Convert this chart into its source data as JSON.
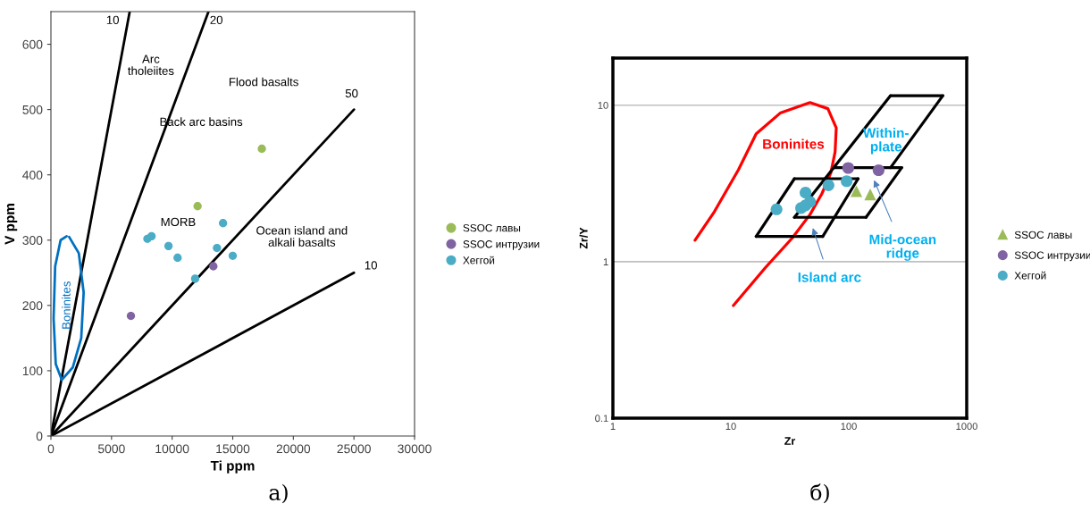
{
  "chart_data": [
    {
      "type": "scatter",
      "xlabel": "Ti ppm",
      "ylabel": "V ppm",
      "xlim": [
        0,
        30000
      ],
      "ylim": [
        0,
        650
      ],
      "xticks": [
        0,
        5000,
        10000,
        15000,
        20000,
        25000,
        30000
      ],
      "yticks": [
        0,
        100,
        200,
        300,
        400,
        500,
        600
      ],
      "grid": false,
      "legend": "right",
      "series": [
        {
          "type": "line",
          "marker": "none",
          "color": "#000000",
          "x": [
            0,
            6500
          ],
          "values": [
            0,
            650
          ]
        },
        {
          "type": "line",
          "marker": "none",
          "color": "#000000",
          "x": [
            0,
            13000
          ],
          "values": [
            0,
            650
          ]
        },
        {
          "type": "line",
          "marker": "none",
          "color": "#000000",
          "x": [
            0,
            25000
          ],
          "values": [
            0,
            500
          ]
        },
        {
          "type": "line",
          "marker": "none",
          "color": "#000000",
          "x": [
            0,
            25000
          ],
          "values": [
            0,
            250
          ]
        },
        {
          "type": "line",
          "marker": "none",
          "color": "#0070c0",
          "x": [
            1500,
            2300,
            2700,
            2500,
            1800,
            900,
            400,
            220,
            350,
            800,
            1300
          ],
          "values": [
            305,
            280,
            220,
            150,
            105,
            86,
            110,
            180,
            260,
            300,
            306
          ]
        },
        {
          "name": "SSOC лавы",
          "marker": "circle",
          "color": "#9bbb59",
          "x": [
            17400,
            12100
          ],
          "values": [
            440,
            352
          ]
        },
        {
          "name": "SSOC интрузии",
          "marker": "circle",
          "color": "#8064a2",
          "x": [
            6600,
            13400
          ],
          "values": [
            184,
            260
          ]
        },
        {
          "name": "Хеггой",
          "marker": "circle",
          "color": "#4bacc6",
          "x": [
            7960,
            8300,
            9700,
            10450,
            11900,
            14200,
            13700,
            15000
          ],
          "values": [
            302,
            306,
            291,
            273,
            241,
            326,
            288,
            276
          ]
        }
      ],
      "annotations": [
        "10",
        "20",
        "50",
        "10",
        "Arc\ntholeiites",
        "Flood basalts",
        "Back arc basins",
        "MORB",
        "Ocean island and\nalkali basalts",
        "Boninites",
        "а)"
      ]
    },
    {
      "type": "scatter",
      "xlabel": "Zr",
      "ylabel": "Zr/Y",
      "log": "xy",
      "xlim": [
        1,
        1000
      ],
      "ylim": [
        0.1,
        20
      ],
      "xticks": [
        1,
        10,
        100,
        1000
      ],
      "yticks": [
        0.1,
        1,
        10
      ],
      "grid": "y",
      "legend": "right",
      "series": [
        {
          "type": "line",
          "marker": "none",
          "color": "#ff0000",
          "x": [
            4.97,
            7.26,
            11.6,
            16.4,
            26.2,
            46.9,
            66.5,
            78.3,
            76.6,
            70.5,
            59.2,
            46.9,
            33,
            19.5,
            10.5
          ],
          "values": [
            1.37,
            2.09,
            3.87,
            6.56,
            8.9,
            10.4,
            9.5,
            7.16,
            5.04,
            3.7,
            2.72,
            2.0,
            1.41,
            0.91,
            0.524
          ]
        },
        {
          "type": "line",
          "marker": "none",
          "color": "#000000",
          "x": [
            16.4,
            60.2
          ],
          "values": [
            1.45,
            1.45
          ]
        },
        {
          "type": "line",
          "marker": "none",
          "color": "#000000",
          "x": [
            16.4,
            34.6
          ],
          "values": [
            1.45,
            3.39
          ]
        },
        {
          "type": "line",
          "marker": "none",
          "color": "#000000",
          "x": [
            34.6,
            120
          ],
          "values": [
            3.39,
            3.39
          ]
        },
        {
          "type": "line",
          "marker": "none",
          "color": "#000000",
          "x": [
            60.2,
            120
          ],
          "values": [
            1.45,
            3.39
          ]
        },
        {
          "type": "line",
          "marker": "none",
          "color": "#000000",
          "x": [
            34.6,
            140
          ],
          "values": [
            1.92,
            1.92
          ]
        },
        {
          "type": "line",
          "marker": "none",
          "color": "#000000",
          "x": [
            34.6,
            74.7,
            226
          ],
          "values": [
            1.92,
            3.99,
            11.5
          ]
        },
        {
          "type": "line",
          "marker": "none",
          "color": "#000000",
          "x": [
            74.7,
            281
          ],
          "values": [
            3.99,
            3.99
          ]
        },
        {
          "type": "line",
          "marker": "none",
          "color": "#000000",
          "x": [
            140,
            281
          ],
          "values": [
            1.92,
            3.99
          ]
        },
        {
          "type": "line",
          "marker": "none",
          "color": "#000000",
          "x": [
            226,
            627
          ],
          "values": [
            11.5,
            11.5
          ]
        },
        {
          "type": "line",
          "marker": "none",
          "color": "#000000",
          "x": [
            226,
            627
          ],
          "values": [
            3.99,
            11.5
          ]
        },
        {
          "name": "SSOC лавы",
          "marker": "triangle",
          "color": "#9bbb59",
          "x": [
            116,
            152
          ],
          "values": [
            2.82,
            2.69
          ]
        },
        {
          "name": "SSOC интрузии",
          "marker": "circle",
          "color": "#8064a2",
          "x": [
            98.9,
            179
          ],
          "values": [
            3.97,
            3.84
          ]
        },
        {
          "name": "Хеггой",
          "marker": "circle",
          "color": "#4bacc6",
          "x": [
            24.4,
            43,
            39.4,
            43,
            46.9,
            67.3,
            96
          ],
          "values": [
            2.16,
            2.76,
            2.2,
            2.29,
            2.41,
            3.08,
            3.27
          ]
        }
      ],
      "annotations": [
        "Boninites",
        "Within-\nplate",
        "Mid-ocean\nridge",
        "Island arc",
        "б)"
      ]
    }
  ]
}
